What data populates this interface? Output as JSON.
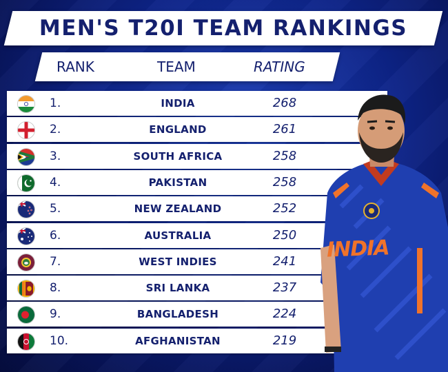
{
  "title": "MEN'S T20I TEAM RANKINGS",
  "headers": {
    "rank": "RANK",
    "team": "TEAM",
    "rating": "RATING"
  },
  "rows": [
    {
      "rank": "1.",
      "team": "INDIA",
      "rating": "268",
      "flag": "india-flag-icon"
    },
    {
      "rank": "2.",
      "team": "ENGLAND",
      "rating": "261",
      "flag": "england-flag-icon"
    },
    {
      "rank": "3.",
      "team": "SOUTH AFRICA",
      "rating": "258",
      "flag": "south-africa-flag-icon"
    },
    {
      "rank": "4.",
      "team": "PAKISTAN",
      "rating": "258",
      "flag": "pakistan-flag-icon"
    },
    {
      "rank": "5.",
      "team": "NEW ZEALAND",
      "rating": "252",
      "flag": "new-zealand-flag-icon"
    },
    {
      "rank": "6.",
      "team": "AUSTRALIA",
      "rating": "250",
      "flag": "australia-flag-icon"
    },
    {
      "rank": "7.",
      "team": "WEST INDIES",
      "rating": "241",
      "flag": "west-indies-flag-icon"
    },
    {
      "rank": "8.",
      "team": "SRI LANKA",
      "rating": "237",
      "flag": "sri-lanka-flag-icon"
    },
    {
      "rank": "9.",
      "team": "BANGLADESH",
      "rating": "224",
      "flag": "bangladesh-flag-icon"
    },
    {
      "rank": "10.",
      "team": "AFGHANISTAN",
      "rating": "219",
      "flag": "afghanistan-flag-icon"
    }
  ],
  "player": {
    "jersey_text": "INDIA"
  },
  "colors": {
    "navy_text": "#14206e",
    "background": "#0d2387",
    "jersey_blue": "#1f3fb0",
    "jersey_orange": "#f0732a"
  }
}
